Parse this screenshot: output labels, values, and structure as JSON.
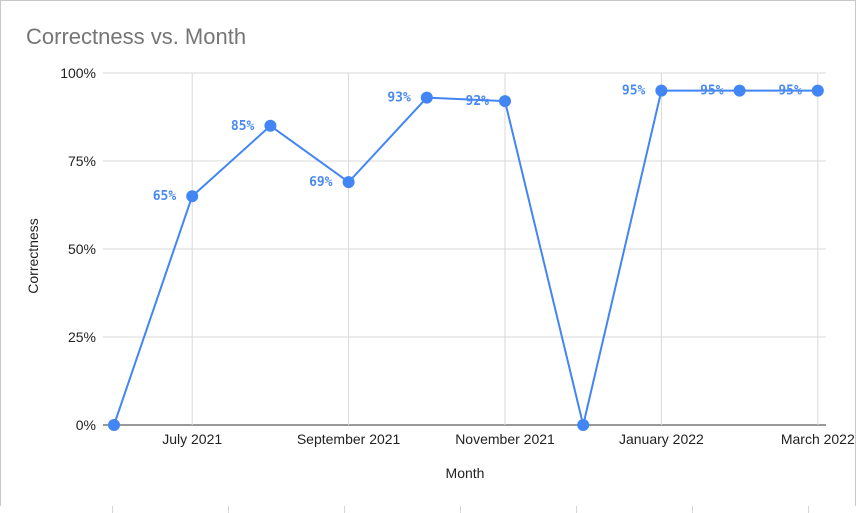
{
  "chart_data": {
    "type": "line",
    "title": "Correctness vs. Month",
    "xlabel": "Month",
    "ylabel": "Correctness",
    "ylim": [
      0,
      1
    ],
    "y_ticks": [
      "0%",
      "25%",
      "50%",
      "75%",
      "100%"
    ],
    "y_tick_values": [
      0,
      0.25,
      0.5,
      0.75,
      1
    ],
    "x_tick_labels": [
      "July 2021",
      "September 2021",
      "November 2021",
      "January 2022",
      "March 2022"
    ],
    "x_tick_months": [
      "2021-07",
      "2021-09",
      "2021-11",
      "2022-01",
      "2022-03"
    ],
    "x": [
      "2021-06",
      "2021-07",
      "2021-08",
      "2021-09",
      "2021-10",
      "2021-11",
      "2021-12",
      "2022-01",
      "2022-02",
      "2022-03"
    ],
    "values": [
      0,
      0.65,
      0.85,
      0.69,
      0.93,
      0.92,
      0,
      0.95,
      0.95,
      0.95
    ],
    "data_labels": [
      "",
      "65%",
      "85%",
      "69%",
      "93%",
      "92%",
      "",
      "95%",
      "95%",
      "95%"
    ],
    "color": "#4285f4",
    "grid": true,
    "legend": "none"
  }
}
